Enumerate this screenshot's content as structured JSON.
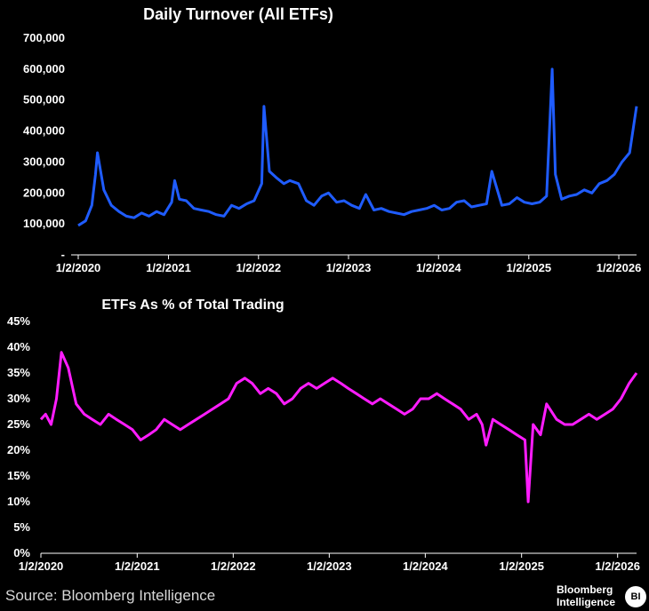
{
  "chart_data": [
    {
      "type": "line",
      "title": "Daily Turnover (All ETFs)",
      "xlabel": "",
      "ylabel": "",
      "x_start": "1/2/2020",
      "x_end": "3/15/2026",
      "x_ticks": [
        "1/2/2020",
        "1/2/2021",
        "1/2/2022",
        "1/2/2023",
        "1/2/2024",
        "1/2/2025",
        "1/2/2026"
      ],
      "y_ticks": [
        "-",
        "100,000",
        "200,000",
        "300,000",
        "400,000",
        "500,000",
        "600,000",
        "700,000"
      ],
      "ylim": [
        0,
        700000
      ],
      "color": "#1f5cff",
      "series": [
        {
          "x": [
            "1/2/2020",
            "2/1/2020",
            "2/26/2020",
            "3/12/2020",
            "3/20/2020",
            "4/15/2020",
            "5/15/2020",
            "6/15/2020",
            "7/15/2020",
            "8/15/2020",
            "9/15/2020",
            "10/15/2020",
            "11/15/2020",
            "12/15/2020",
            "1/15/2021",
            "1/27/2021",
            "2/15/2021",
            "3/15/2021",
            "4/15/2021",
            "5/15/2021",
            "6/15/2021",
            "7/15/2021",
            "8/15/2021",
            "9/15/2021",
            "10/15/2021",
            "11/15/2021",
            "12/15/2021",
            "1/15/2022",
            "1/24/2022",
            "2/15/2022",
            "3/15/2022",
            "4/15/2022",
            "5/9/2022",
            "6/13/2022",
            "7/15/2022",
            "8/15/2022",
            "9/15/2022",
            "10/13/2022",
            "11/15/2022",
            "12/15/2022",
            "1/15/2023",
            "2/15/2023",
            "3/13/2023",
            "4/15/2023",
            "5/15/2023",
            "6/15/2023",
            "7/15/2023",
            "8/15/2023",
            "9/15/2023",
            "10/15/2023",
            "11/15/2023",
            "12/15/2023",
            "1/15/2024",
            "2/15/2024",
            "3/15/2024",
            "4/15/2024",
            "5/15/2024",
            "6/15/2024",
            "7/15/2024",
            "8/5/2024",
            "9/15/2024",
            "10/15/2024",
            "11/15/2024",
            "12/15/2024",
            "1/15/2025",
            "2/15/2025",
            "3/15/2025",
            "4/7/2025",
            "4/20/2025",
            "5/15/2025",
            "6/15/2025",
            "7/15/2025",
            "8/15/2025",
            "9/15/2025",
            "10/15/2025",
            "11/15/2025",
            "12/15/2025",
            "1/15/2026",
            "2/15/2026",
            "3/15/2026"
          ],
          "y": [
            95000,
            110000,
            160000,
            260000,
            330000,
            210000,
            160000,
            140000,
            125000,
            120000,
            135000,
            125000,
            140000,
            130000,
            170000,
            240000,
            180000,
            175000,
            150000,
            145000,
            140000,
            130000,
            125000,
            160000,
            150000,
            165000,
            175000,
            230000,
            480000,
            270000,
            250000,
            230000,
            240000,
            230000,
            175000,
            160000,
            190000,
            200000,
            170000,
            175000,
            160000,
            150000,
            195000,
            145000,
            150000,
            140000,
            135000,
            130000,
            140000,
            145000,
            150000,
            160000,
            145000,
            150000,
            170000,
            175000,
            155000,
            160000,
            165000,
            270000,
            160000,
            165000,
            185000,
            170000,
            165000,
            170000,
            190000,
            600000,
            260000,
            180000,
            190000,
            195000,
            210000,
            200000,
            230000,
            240000,
            260000,
            300000,
            330000,
            480000
          ]
        }
      ]
    },
    {
      "type": "line",
      "title": "ETFs As % of Total Trading",
      "xlabel": "",
      "ylabel": "",
      "x_start": "1/2/2020",
      "x_end": "3/15/2026",
      "x_ticks": [
        "1/2/2020",
        "1/2/2021",
        "1/2/2022",
        "1/2/2023",
        "1/2/2024",
        "1/2/2025",
        "1/2/2026"
      ],
      "y_ticks": [
        "0%",
        "5%",
        "10%",
        "15%",
        "20%",
        "25%",
        "30%",
        "35%",
        "40%",
        "45%"
      ],
      "ylim": [
        0,
        45
      ],
      "color": "#ff1cff",
      "series": [
        {
          "x": [
            "1/2/2020",
            "1/20/2020",
            "2/10/2020",
            "3/1/2020",
            "3/20/2020",
            "4/15/2020",
            "5/15/2020",
            "6/15/2020",
            "7/15/2020",
            "8/15/2020",
            "9/15/2020",
            "10/15/2020",
            "11/15/2020",
            "12/15/2020",
            "1/15/2021",
            "2/15/2021",
            "3/15/2021",
            "4/15/2021",
            "5/15/2021",
            "6/15/2021",
            "7/15/2021",
            "8/15/2021",
            "9/15/2021",
            "10/15/2021",
            "11/15/2021",
            "12/15/2021",
            "1/15/2022",
            "2/15/2022",
            "3/15/2022",
            "4/15/2022",
            "5/15/2022",
            "6/15/2022",
            "7/15/2022",
            "8/15/2022",
            "9/15/2022",
            "10/15/2022",
            "11/15/2022",
            "12/15/2022",
            "1/15/2023",
            "2/15/2023",
            "3/15/2023",
            "4/15/2023",
            "5/15/2023",
            "6/15/2023",
            "7/15/2023",
            "8/15/2023",
            "9/15/2023",
            "10/15/2023",
            "11/15/2023",
            "12/15/2023",
            "1/15/2024",
            "2/15/2024",
            "3/15/2024",
            "4/15/2024",
            "5/15/2024",
            "6/15/2024",
            "7/15/2024",
            "8/5/2024",
            "8/20/2024",
            "9/15/2024",
            "10/15/2024",
            "11/15/2024",
            "12/15/2024",
            "1/15/2025",
            "1/27/2025",
            "2/15/2025",
            "3/15/2025",
            "4/7/2025",
            "5/15/2025",
            "6/15/2025",
            "7/15/2025",
            "8/15/2025",
            "9/15/2025",
            "10/15/2025",
            "11/15/2025",
            "12/15/2025",
            "1/15/2026",
            "2/15/2026",
            "3/15/2026"
          ],
          "y": [
            26,
            27,
            25,
            30,
            39,
            36,
            29,
            27,
            26,
            25,
            27,
            26,
            25,
            24,
            22,
            23,
            24,
            26,
            25,
            24,
            25,
            26,
            27,
            28,
            29,
            30,
            33,
            34,
            33,
            31,
            32,
            31,
            29,
            30,
            32,
            33,
            32,
            33,
            34,
            33,
            32,
            31,
            30,
            29,
            30,
            29,
            28,
            27,
            28,
            30,
            30,
            31,
            30,
            29,
            28,
            26,
            27,
            25,
            21,
            26,
            25,
            24,
            23,
            22,
            10,
            25,
            23,
            29,
            26,
            25,
            25,
            26,
            27,
            26,
            27,
            28,
            30,
            33,
            35
          ]
        }
      ]
    }
  ],
  "footer": {
    "source": "Source: Bloomberg Intelligence",
    "brand_line1": "Bloomberg",
    "brand_line2": "Intelligence",
    "brand_badge": "BI"
  }
}
